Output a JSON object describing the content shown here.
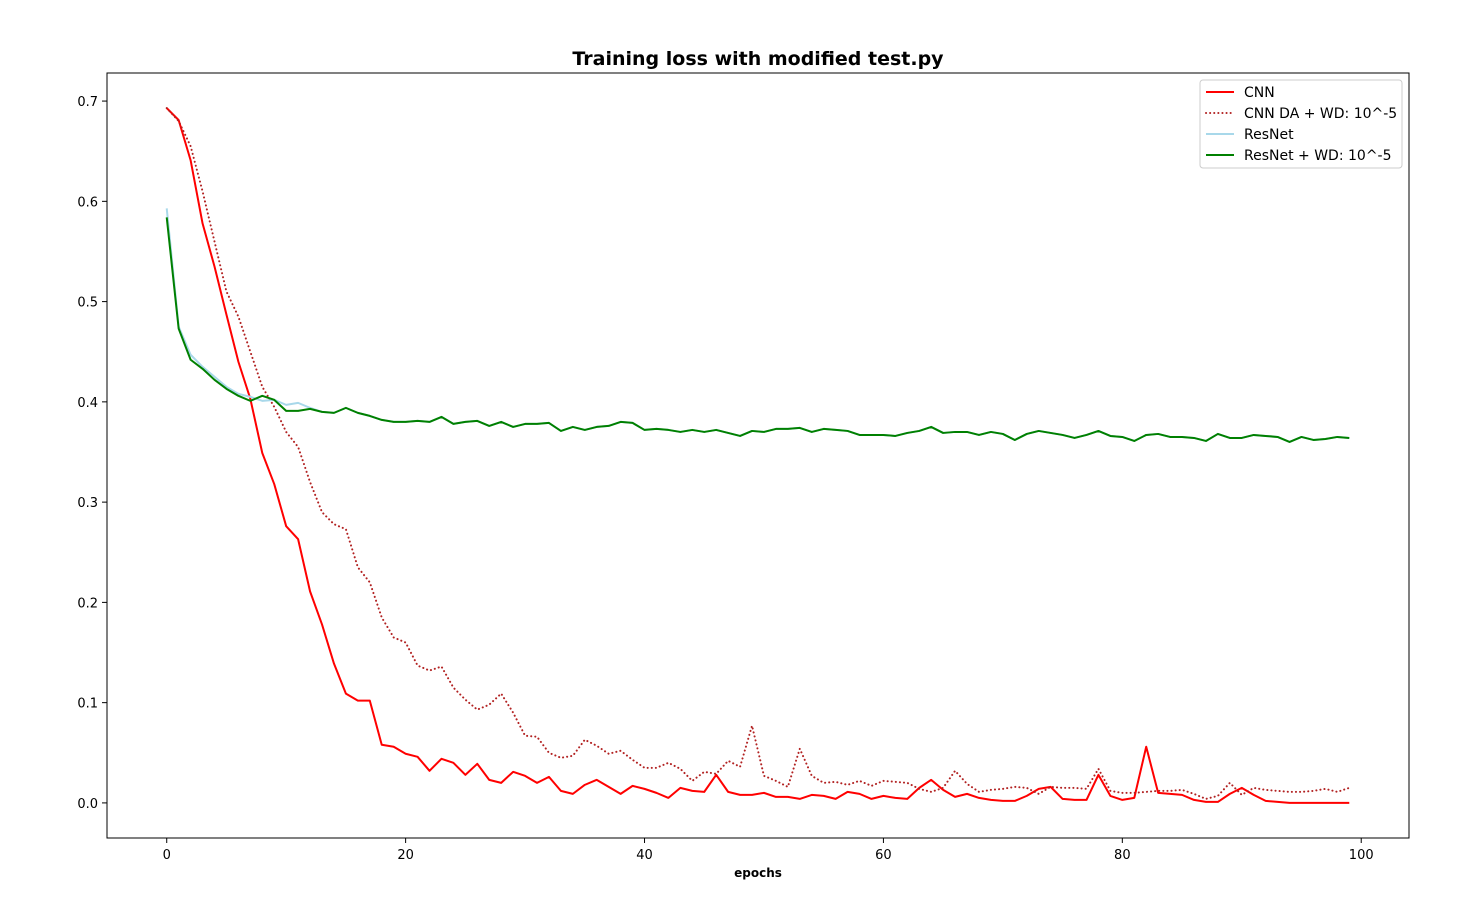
{
  "chart_data": {
    "type": "line",
    "title": "Training loss with modified test.py",
    "xlabel": "epochs",
    "ylabel": "",
    "xlim": [
      -5,
      104
    ],
    "ylim": [
      -0.035,
      0.728
    ],
    "xticks": [
      0,
      20,
      40,
      60,
      80,
      100
    ],
    "xtick_labels": [
      "0",
      "20",
      "40",
      "60",
      "80",
      "100"
    ],
    "yticks": [
      0.0,
      0.1,
      0.2,
      0.3,
      0.4,
      0.5,
      0.6,
      0.7
    ],
    "ytick_labels": [
      "0.0",
      "0.1",
      "0.2",
      "0.3",
      "0.4",
      "0.5",
      "0.6",
      "0.7"
    ],
    "grid": false,
    "legend_position": "top-right",
    "x": [
      0,
      1,
      2,
      3,
      4,
      5,
      6,
      7,
      8,
      9,
      10,
      11,
      12,
      13,
      14,
      15,
      16,
      17,
      18,
      19,
      20,
      21,
      22,
      23,
      24,
      25,
      26,
      27,
      28,
      29,
      30,
      31,
      32,
      33,
      34,
      35,
      36,
      37,
      38,
      39,
      40,
      41,
      42,
      43,
      44,
      45,
      46,
      47,
      48,
      49,
      50,
      51,
      52,
      53,
      54,
      55,
      56,
      57,
      58,
      59,
      60,
      61,
      62,
      63,
      64,
      65,
      66,
      67,
      68,
      69,
      70,
      71,
      72,
      73,
      74,
      75,
      76,
      77,
      78,
      79,
      80,
      81,
      82,
      83,
      84,
      85,
      86,
      87,
      88,
      89,
      90,
      91,
      92,
      93,
      94,
      95,
      96,
      97,
      98,
      99
    ],
    "series": [
      {
        "name": "CNN",
        "color": "#ff0000",
        "style": "solid",
        "values": [
          0.693,
          0.681,
          0.641,
          0.578,
          0.535,
          0.487,
          0.44,
          0.403,
          0.349,
          0.318,
          0.276,
          0.263,
          0.211,
          0.178,
          0.139,
          0.109,
          0.102,
          0.102,
          0.058,
          0.056,
          0.049,
          0.046,
          0.032,
          0.044,
          0.04,
          0.028,
          0.039,
          0.023,
          0.02,
          0.031,
          0.027,
          0.02,
          0.026,
          0.012,
          0.009,
          0.018,
          0.023,
          0.016,
          0.009,
          0.017,
          0.014,
          0.01,
          0.005,
          0.015,
          0.012,
          0.011,
          0.028,
          0.011,
          0.008,
          0.008,
          0.01,
          0.006,
          0.006,
          0.004,
          0.008,
          0.007,
          0.004,
          0.011,
          0.009,
          0.004,
          0.007,
          0.005,
          0.004,
          0.015,
          0.023,
          0.013,
          0.006,
          0.009,
          0.005,
          0.003,
          0.002,
          0.002,
          0.007,
          0.014,
          0.016,
          0.004,
          0.003,
          0.003,
          0.028,
          0.007,
          0.003,
          0.005,
          0.056,
          0.01,
          0.009,
          0.008,
          0.003,
          0.001,
          0.001,
          0.009,
          0.015,
          0.008,
          0.002,
          0.001,
          0.0,
          0.0,
          0.0,
          0.0,
          0.0,
          0.0
        ]
      },
      {
        "name": "CNN DA + WD: 10^-5",
        "color": "#b22222",
        "style": "dotted",
        "values": [
          0.693,
          0.68,
          0.655,
          0.61,
          0.56,
          0.51,
          0.485,
          0.45,
          0.415,
          0.395,
          0.37,
          0.355,
          0.32,
          0.29,
          0.278,
          0.273,
          0.235,
          0.22,
          0.185,
          0.165,
          0.16,
          0.137,
          0.132,
          0.136,
          0.115,
          0.103,
          0.093,
          0.098,
          0.109,
          0.09,
          0.067,
          0.066,
          0.05,
          0.045,
          0.047,
          0.063,
          0.057,
          0.049,
          0.052,
          0.043,
          0.035,
          0.035,
          0.04,
          0.034,
          0.022,
          0.031,
          0.029,
          0.042,
          0.036,
          0.077,
          0.027,
          0.022,
          0.016,
          0.054,
          0.027,
          0.02,
          0.021,
          0.018,
          0.022,
          0.017,
          0.022,
          0.021,
          0.02,
          0.014,
          0.011,
          0.015,
          0.032,
          0.019,
          0.011,
          0.013,
          0.014,
          0.016,
          0.015,
          0.009,
          0.016,
          0.015,
          0.015,
          0.014,
          0.034,
          0.012,
          0.01,
          0.01,
          0.011,
          0.012,
          0.012,
          0.013,
          0.009,
          0.004,
          0.007,
          0.02,
          0.008,
          0.015,
          0.013,
          0.012,
          0.011,
          0.011,
          0.012,
          0.014,
          0.011,
          0.015
        ]
      },
      {
        "name": "ResNet",
        "color": "#a8d8ea",
        "style": "solid",
        "values": [
          0.593,
          0.475,
          0.447,
          0.435,
          0.425,
          0.415,
          0.408,
          0.405,
          0.401,
          0.402,
          0.397,
          0.399,
          0.394,
          0.39,
          0.389,
          0.394,
          0.389,
          0.386,
          0.382,
          0.38,
          0.38,
          0.381,
          0.38,
          0.385,
          0.378,
          0.38,
          0.381,
          0.376,
          0.38,
          0.375,
          0.378,
          0.378,
          0.379,
          0.371,
          0.375,
          0.372,
          0.375,
          0.376,
          0.38,
          0.379,
          0.372,
          0.373,
          0.372,
          0.37,
          0.372,
          0.37,
          0.372,
          0.369,
          0.366,
          0.371,
          0.37,
          0.373,
          0.373,
          0.374,
          0.37,
          0.373,
          0.372,
          0.371,
          0.367,
          0.367,
          0.367,
          0.366,
          0.369,
          0.371,
          0.375,
          0.369,
          0.37,
          0.37,
          0.367,
          0.37,
          0.368,
          0.362,
          0.368,
          0.371,
          0.369,
          0.367,
          0.364,
          0.367,
          0.371,
          0.366,
          0.365,
          0.361,
          0.367,
          0.368,
          0.365,
          0.365,
          0.364,
          0.361,
          0.368,
          0.364,
          0.364,
          0.367,
          0.366,
          0.365,
          0.36,
          0.365,
          0.362,
          0.363,
          0.365,
          0.364
        ]
      },
      {
        "name": "ResNet + WD: 10^-5",
        "color": "#008000",
        "style": "solid",
        "values": [
          0.584,
          0.473,
          0.442,
          0.433,
          0.422,
          0.413,
          0.406,
          0.401,
          0.406,
          0.402,
          0.391,
          0.391,
          0.393,
          0.39,
          0.389,
          0.394,
          0.389,
          0.386,
          0.382,
          0.38,
          0.38,
          0.381,
          0.38,
          0.385,
          0.378,
          0.38,
          0.381,
          0.376,
          0.38,
          0.375,
          0.378,
          0.378,
          0.379,
          0.371,
          0.375,
          0.372,
          0.375,
          0.376,
          0.38,
          0.379,
          0.372,
          0.373,
          0.372,
          0.37,
          0.372,
          0.37,
          0.372,
          0.369,
          0.366,
          0.371,
          0.37,
          0.373,
          0.373,
          0.374,
          0.37,
          0.373,
          0.372,
          0.371,
          0.367,
          0.367,
          0.367,
          0.366,
          0.369,
          0.371,
          0.375,
          0.369,
          0.37,
          0.37,
          0.367,
          0.37,
          0.368,
          0.362,
          0.368,
          0.371,
          0.369,
          0.367,
          0.364,
          0.367,
          0.371,
          0.366,
          0.365,
          0.361,
          0.367,
          0.368,
          0.365,
          0.365,
          0.364,
          0.361,
          0.368,
          0.364,
          0.364,
          0.367,
          0.366,
          0.365,
          0.36,
          0.365,
          0.362,
          0.363,
          0.365,
          0.364
        ]
      }
    ]
  }
}
